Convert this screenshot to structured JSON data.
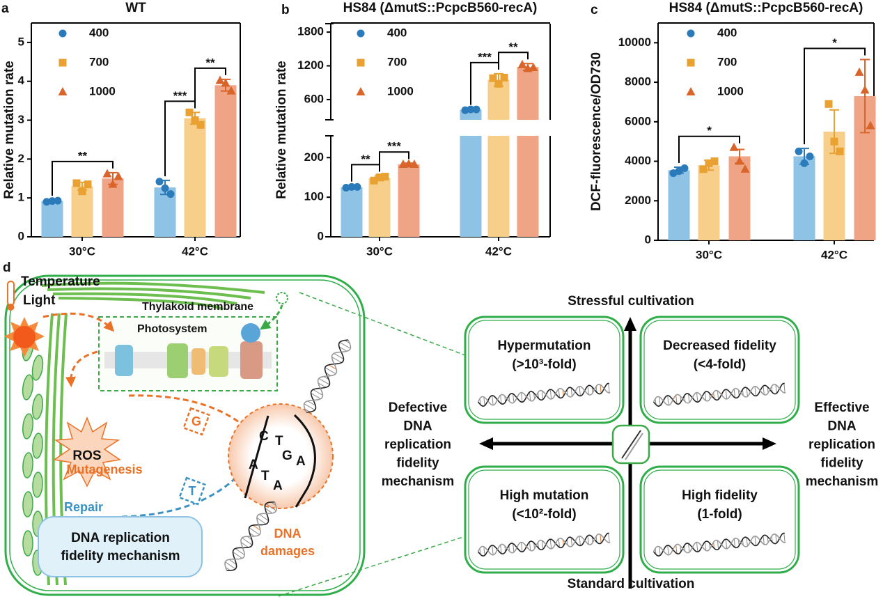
{
  "chart_data": [
    {
      "type": "bar",
      "panel_label": "a",
      "title": "WT",
      "y_label": "Relative mutation rate",
      "categories": [
        "30°C",
        "42°C"
      ],
      "series": [
        {
          "name": "400",
          "marker": "circle",
          "color": "#8ec3e6",
          "marker_color": "#2b7bba",
          "values": [
            0.92,
            1.27
          ],
          "errors": [
            0.03,
            0.18
          ],
          "points": [
            [
              0.9,
              0.92,
              0.93
            ],
            [
              1.42,
              1.25,
              1.1
            ]
          ]
        },
        {
          "name": "700",
          "marker": "square",
          "color": "#f7cf8a",
          "marker_color": "#e9a232",
          "values": [
            1.3,
            3.05
          ],
          "errors": [
            0.1,
            0.15
          ],
          "points": [
            [
              1.38,
              1.17,
              1.35
            ],
            [
              3.2,
              3.0,
              2.88
            ]
          ]
        },
        {
          "name": "1000",
          "marker": "triangle",
          "color": "#efa585",
          "marker_color": "#d9652a",
          "values": [
            1.5,
            3.9
          ],
          "errors": [
            0.15,
            0.15
          ],
          "points": [
            [
              1.62,
              1.35,
              1.55
            ],
            [
              4.02,
              3.95,
              3.75
            ]
          ]
        }
      ],
      "ylim": [
        0,
        5.5
      ],
      "yticks": [
        0,
        1,
        2,
        3,
        4,
        5
      ],
      "annotations": [
        {
          "label": "**",
          "category": 0,
          "from": 0,
          "to": 2
        },
        {
          "label": "***",
          "category": 1,
          "from": 0,
          "to": 1
        },
        {
          "label": "**",
          "category": 1,
          "from": 1,
          "to": 2
        }
      ]
    },
    {
      "type": "bar",
      "panel_label": "b",
      "title": "HS84 (ΔmutS::PcpcB560-recA)",
      "y_label": "Relative mutation rate",
      "categories": [
        "30°C",
        "42°C"
      ],
      "series": [
        {
          "name": "400",
          "marker": "circle",
          "color": "#8ec3e6",
          "marker_color": "#2b7bba",
          "values": [
            125,
            420
          ],
          "errors": [
            4,
            10
          ],
          "points": [
            [
              124,
              126,
              126
            ],
            [
              410,
              425,
              425
            ]
          ]
        },
        {
          "name": "700",
          "marker": "square",
          "color": "#f7cf8a",
          "marker_color": "#e9a232",
          "values": [
            148,
            950
          ],
          "errors": [
            6,
            110
          ],
          "points": [
            [
              142,
              150,
              152
            ],
            [
              980,
              880,
              990
            ]
          ]
        },
        {
          "name": "1000",
          "marker": "triangle",
          "color": "#efa585",
          "marker_color": "#d9652a",
          "values": [
            183,
            1180
          ],
          "errors": [
            3,
            60
          ],
          "points": [
            [
              183,
              184,
              183
            ],
            [
              1220,
              1150,
              1170
            ]
          ]
        }
      ],
      "y_segments": [
        {
          "ylim": [
            0,
            255
          ],
          "yticks": [
            0,
            100,
            200
          ]
        },
        {
          "ylim": [
            240,
            1950
          ],
          "yticks": [
            600,
            1200,
            1800
          ]
        }
      ],
      "annotations": [
        {
          "label": "**",
          "category": 0,
          "from": 0,
          "to": 1
        },
        {
          "label": "***",
          "category": 0,
          "from": 1,
          "to": 2
        },
        {
          "label": "***",
          "category": 1,
          "from": 0,
          "to": 1
        },
        {
          "label": "**",
          "category": 1,
          "from": 1,
          "to": 2
        }
      ]
    },
    {
      "type": "bar",
      "panel_label": "c",
      "title": "HS84 (ΔmutS::PcpcB560-recA)",
      "y_label": "DCF-fluorescence/OD730",
      "categories": [
        "30°C",
        "42°C"
      ],
      "series": [
        {
          "name": "400",
          "marker": "circle",
          "color": "#8ec3e6",
          "marker_color": "#2b7bba",
          "values": [
            3550,
            4250
          ],
          "errors": [
            150,
            400
          ],
          "points": [
            [
              3400,
              3500,
              3650
            ],
            [
              4500,
              3900,
              4250
            ]
          ]
        },
        {
          "name": "700",
          "marker": "square",
          "color": "#f7cf8a",
          "marker_color": "#e9a232",
          "values": [
            3800,
            5500
          ],
          "errors": [
            250,
            1100
          ],
          "points": [
            [
              3600,
              3900,
              4000
            ],
            [
              6900,
              5000,
              4500
            ]
          ]
        },
        {
          "name": "1000",
          "marker": "triangle",
          "color": "#efa585",
          "marker_color": "#d9652a",
          "values": [
            4250,
            7300
          ],
          "errors": [
            350,
            1850
          ],
          "points": [
            [
              4700,
              4000,
              3600
            ],
            [
              8500,
              7600,
              5800
            ]
          ]
        }
      ],
      "ylim": [
        0,
        11000
      ],
      "yticks": [
        0,
        2000,
        4000,
        6000,
        8000,
        10000
      ],
      "annotations": [
        {
          "label": "*",
          "category": 0,
          "from": 0,
          "to": 2
        },
        {
          "label": "*",
          "category": 1,
          "from": 0,
          "to": 2
        }
      ]
    }
  ],
  "diagram": {
    "panel_label": "d",
    "temperature": "Temperature",
    "light": "Light",
    "thylakoid": "Thylakoid membrane",
    "photosystem": "Photosystem",
    "ros": "ROS",
    "mutagenesis": "Mutagenesis",
    "g": "G",
    "t": "T",
    "repair": "Repair",
    "fidelity_box": [
      "DNA replication",
      "fidelity mechanism"
    ],
    "damages": [
      "DNA",
      "damages"
    ],
    "bases": [
      "C",
      "T",
      "G",
      "A",
      "A",
      "T",
      "A"
    ],
    "top_axis": "Stressful  cultivation",
    "bottom_axis": "Standard cultivation",
    "left_axis": [
      "Defective",
      "DNA",
      "replication",
      "fidelity",
      "mechanism"
    ],
    "right_axis": [
      "Effective",
      "DNA",
      "replication",
      "fidelity",
      "mechanism"
    ],
    "quadrants": [
      {
        "title": "Hypermutation",
        "detail": "(>10³-fold)"
      },
      {
        "title": "Decreased fidelity",
        "detail": "(<4-fold)"
      },
      {
        "title": "High mutation",
        "detail": "(<10²-fold)"
      },
      {
        "title": "High fidelity",
        "detail": "(1-fold)"
      }
    ]
  }
}
